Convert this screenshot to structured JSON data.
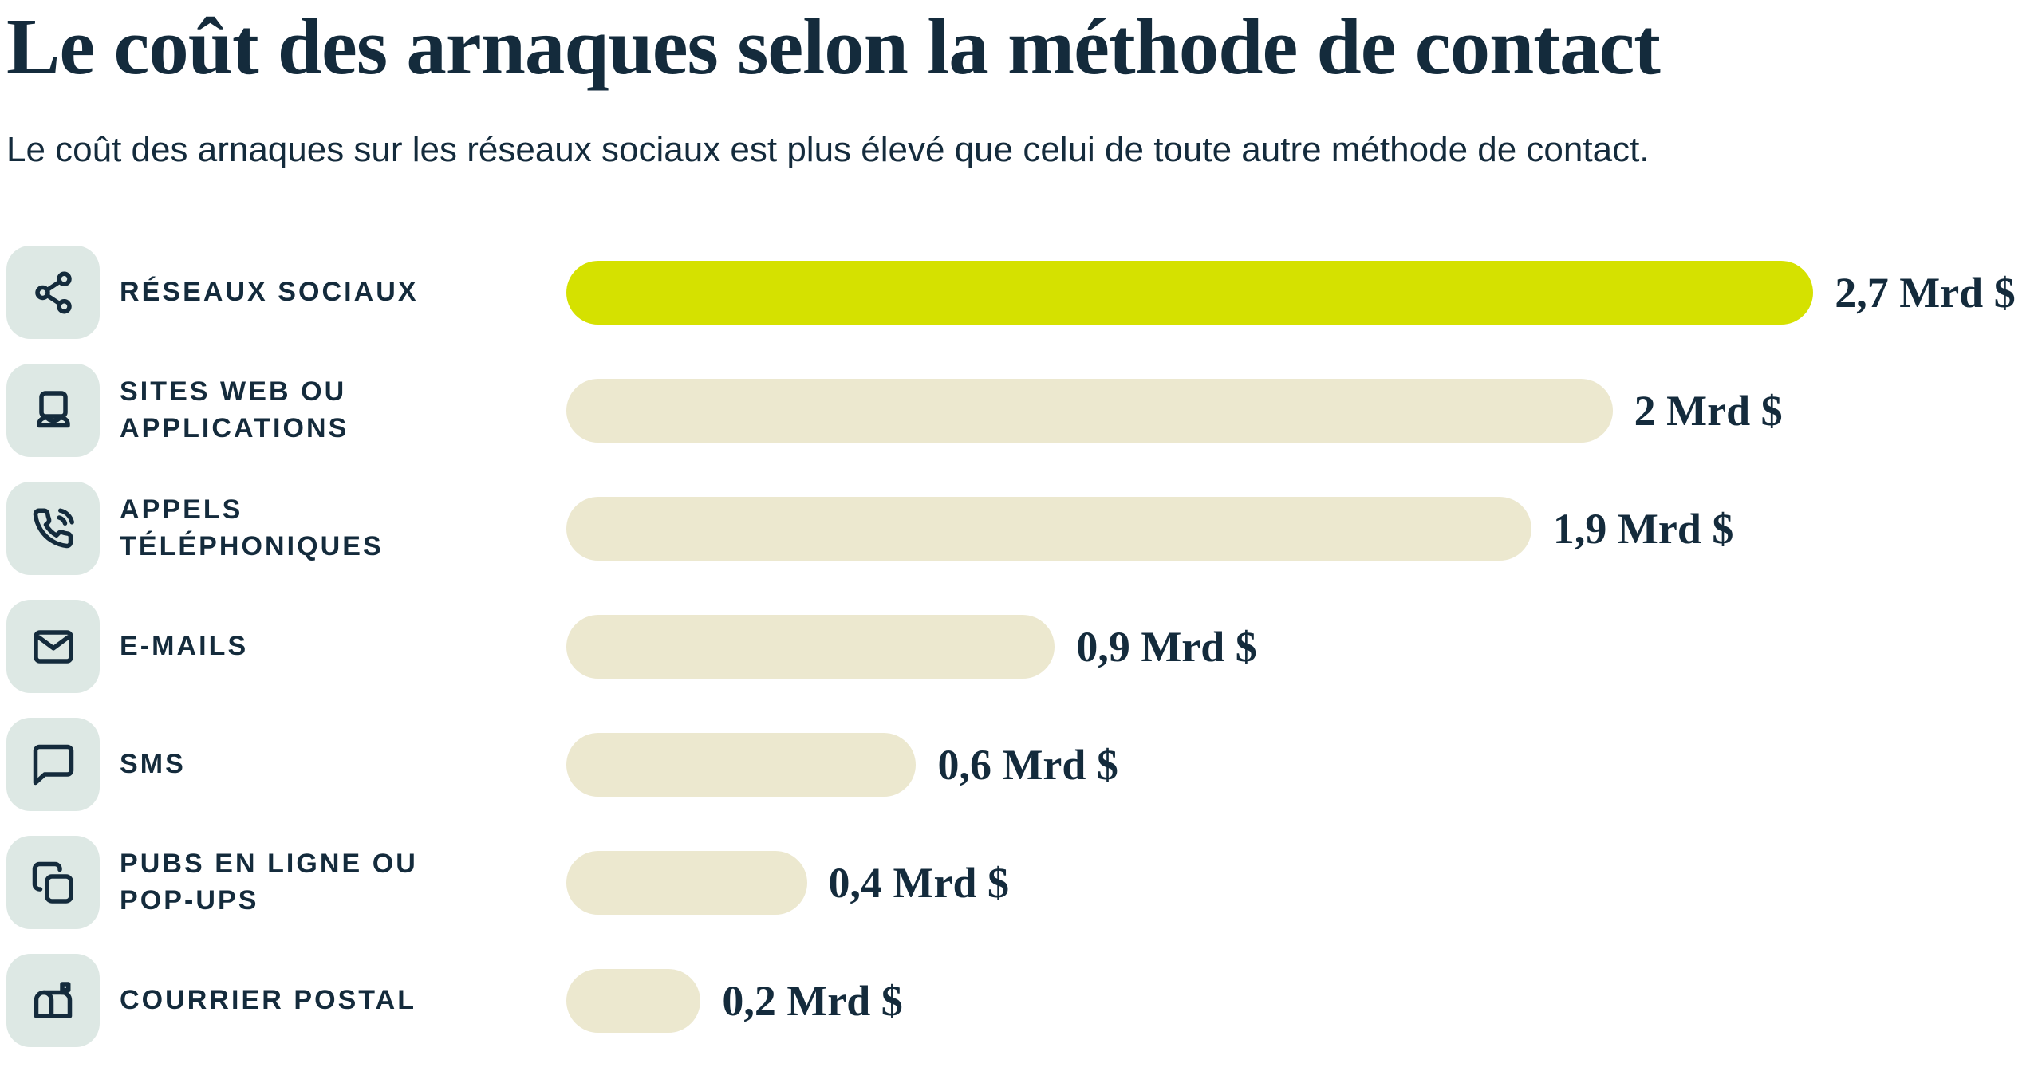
{
  "header": {
    "title": "Le coût des arnaques selon la méthode de contact",
    "subtitle": "Le coût des arnaques sur les réseaux sociaux est plus élevé que celui de toute autre méthode de contact."
  },
  "colors": {
    "text_navy": "#142b3c",
    "background": "#ffffff",
    "icon_tile_bg": "#dde8e4",
    "highlight_bar": "#d5e100",
    "default_bar": "#ece8cf"
  },
  "chart_data": {
    "type": "bar",
    "orientation": "horizontal",
    "title": "Le coût des arnaques selon la méthode de contact",
    "subtitle": "Le coût des arnaques sur les réseaux sociaux est plus élevé que celui de toute autre méthode de contact.",
    "unit": "Mrd $",
    "grid": false,
    "legend": false,
    "xlim": [
      0,
      2.7
    ],
    "highlighted_index": 0,
    "highlight_color": "#d5e100",
    "bar_color": "#ece8cf",
    "categories": [
      "RÉSEAUX SOCIAUX",
      "SITES WEB OU APPLICATIONS",
      "APPELS TÉLÉPHONIQUES",
      "E-MAILS",
      "SMS",
      "PUBS EN LIGNE OU POP-UPS",
      "COURRIER POSTAL"
    ],
    "values": [
      2.7,
      2,
      1.9,
      0.9,
      0.6,
      0.4,
      0.2
    ],
    "value_labels": [
      "2,7 Mrd $",
      "2 Mrd $",
      "1,9 Mrd $",
      "0,9 Mrd $",
      "0,6 Mrd $",
      "0,4 Mrd $",
      "0,2 Mrd $"
    ],
    "icons": [
      "share-icon",
      "laptop-icon",
      "phone-volume-icon",
      "mail-icon",
      "chat-bubble-icon",
      "copy-icon",
      "mailbox-icon"
    ],
    "bar_pct": [
      84.5,
      70.9,
      65.4,
      33.1,
      23.7,
      16.3,
      9.1
    ]
  }
}
